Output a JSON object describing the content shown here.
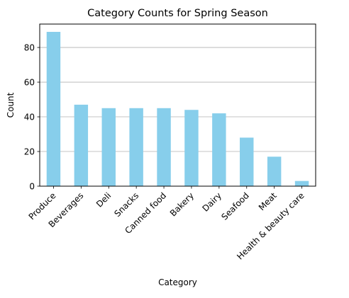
{
  "chart_data": {
    "type": "bar",
    "title": "Category Counts for Spring Season",
    "xlabel": "Category",
    "ylabel": "Count",
    "categories": [
      "Produce",
      "Beverages",
      "Deli",
      "Snacks",
      "Canned food",
      "Bakery",
      "Dairy",
      "Seafood",
      "Meat",
      "Health & beauty care"
    ],
    "values": [
      89,
      47,
      45,
      45,
      45,
      44,
      42,
      28,
      17,
      3
    ],
    "ylim": [
      0,
      93.5
    ],
    "yticks": [
      0,
      20,
      40,
      60,
      80
    ],
    "grid": {
      "y": true,
      "x": false
    },
    "bar_color": "#87ceeb",
    "grid_color": "#b0b0b0",
    "legend": "none"
  }
}
